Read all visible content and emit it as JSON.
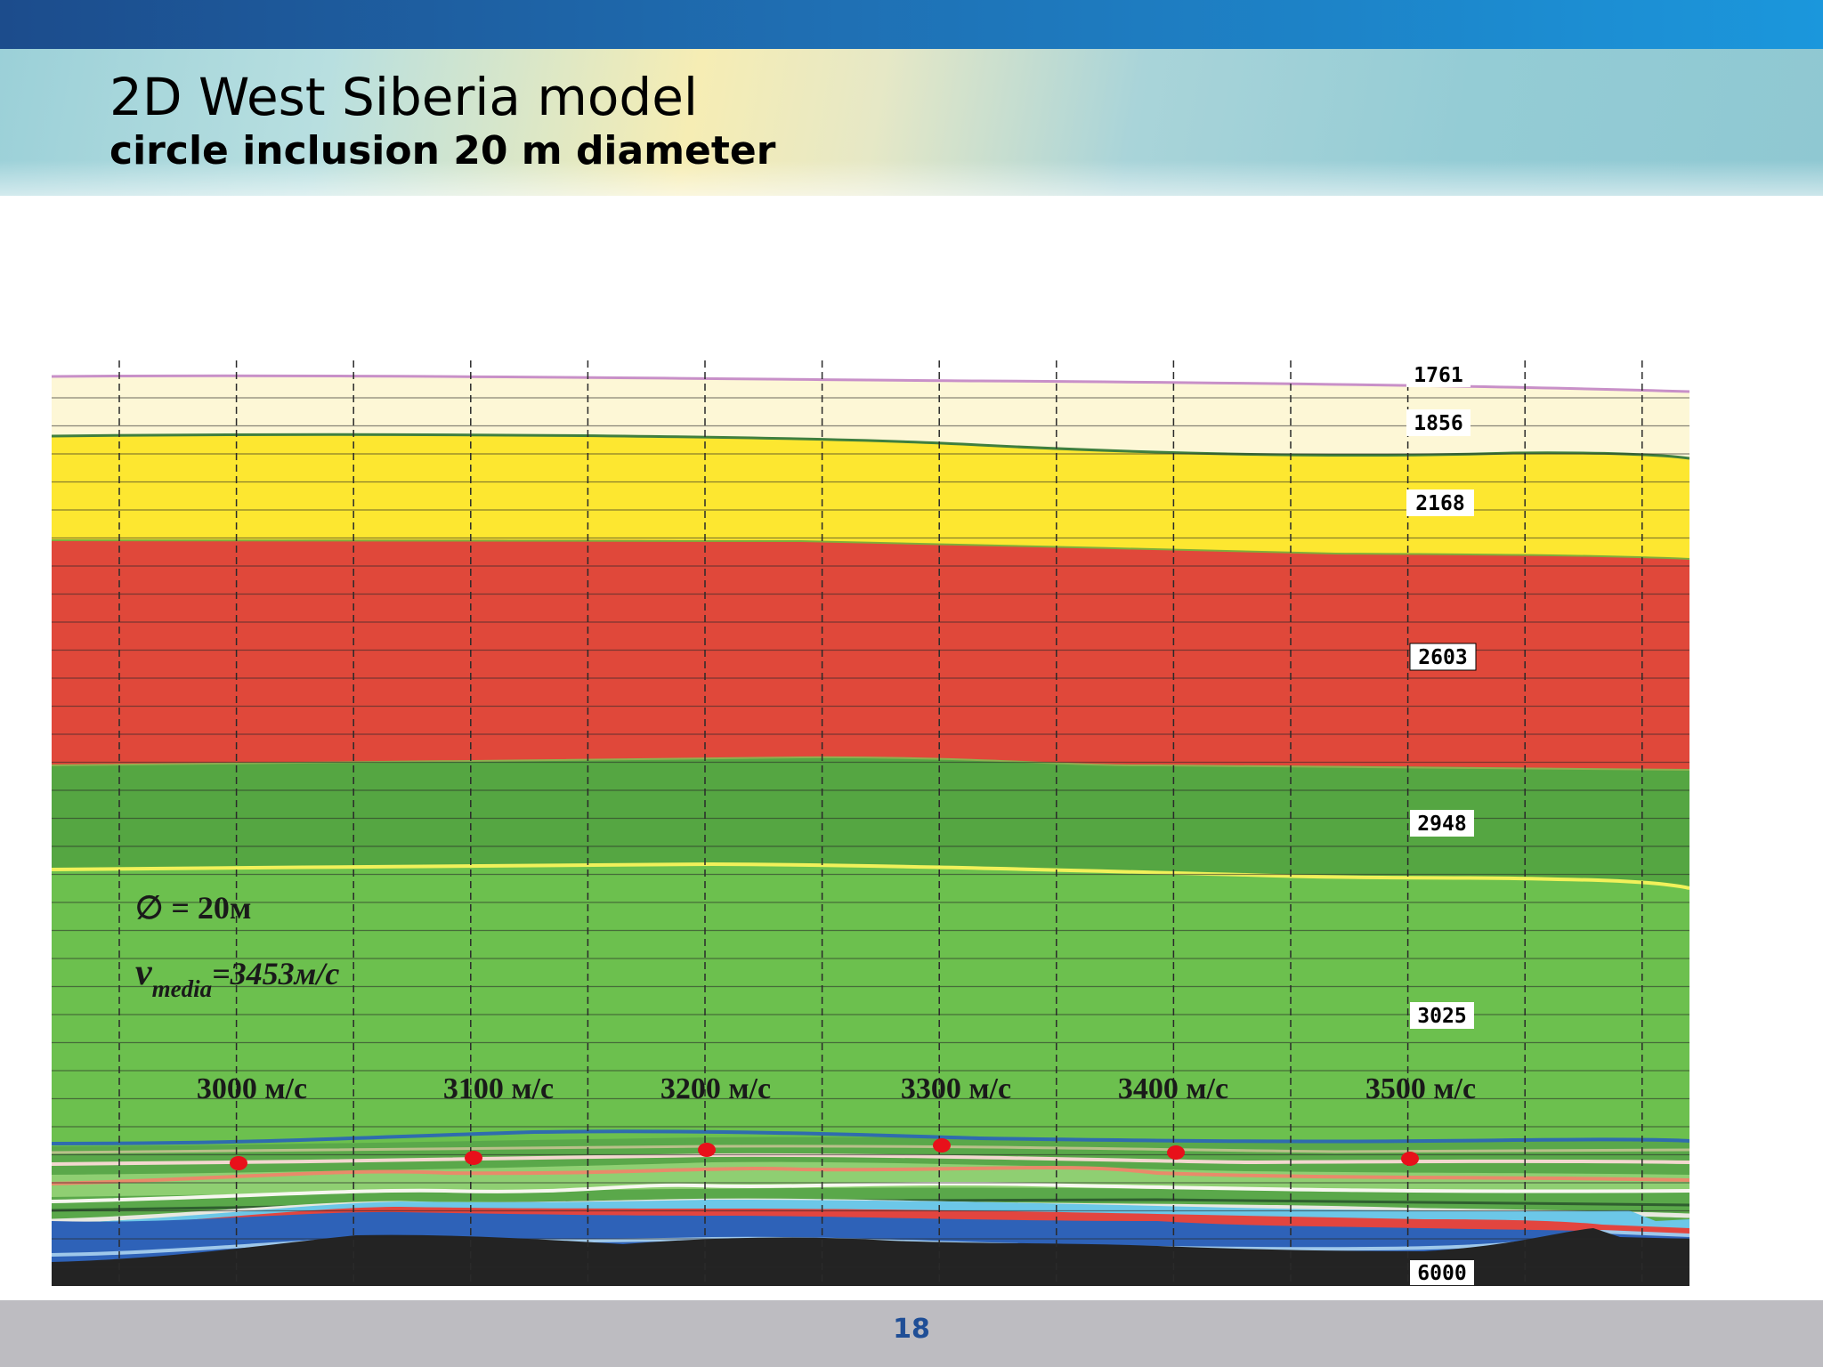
{
  "header": {
    "title": "2D West Siberia model",
    "subtitle": "circle inclusion 20 m diameter"
  },
  "model": {
    "layer_labels": [
      "1761",
      "1856",
      "2168",
      "2603",
      "2948",
      "3025",
      "6000"
    ],
    "inclusion_diameter_text": "∅ = 20м",
    "velocity_text_main": "v",
    "velocity_text_sub": "media",
    "velocity_text_value": "=3453м/с",
    "inclusion_velocity_labels": [
      "3000 м/с",
      "3100 м/с",
      "3200 м/с",
      "3300 м/с",
      "3400 м/с",
      "3500 м/с"
    ],
    "colors": {
      "cream": "#fdf7d6",
      "yellow": "#fde730",
      "red": "#e0483a",
      "dark_green": "#55a642",
      "green": "#6cc04e",
      "blue": "#2e62b8",
      "black": "#232323",
      "inclusion": "#e8101a"
    }
  },
  "footer": {
    "page_number": "18"
  }
}
